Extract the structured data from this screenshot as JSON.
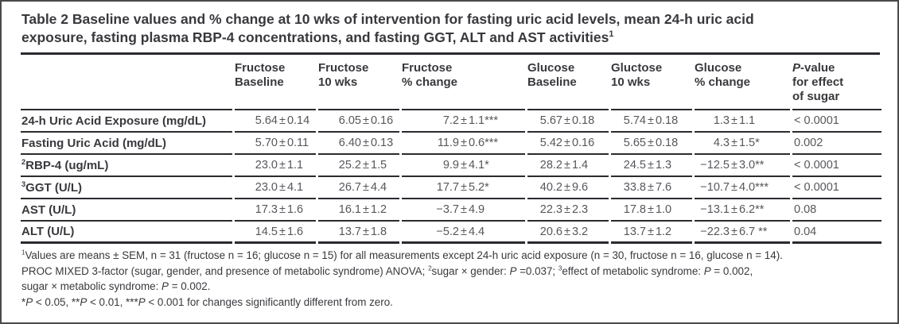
{
  "title": {
    "lines": [
      "Table 2 Baseline values and % change at 10 wks of intervention for fasting uric acid levels, mean 24-h uric acid",
      "exposure, fasting plasma RBP-4 concentrations, and fasting GGT, ALT and AST activities"
    ],
    "superscript": "1"
  },
  "table": {
    "header": {
      "columns": [
        {
          "lines": []
        },
        {
          "lines": [
            [
              {
                "t": "Fructose"
              }
            ],
            [
              {
                "t": "Baseline"
              }
            ]
          ]
        },
        {
          "lines": [
            [
              {
                "t": "Fructose"
              }
            ],
            [
              {
                "t": "10 wks"
              }
            ]
          ]
        },
        {
          "lines": [
            [
              {
                "t": "Fructose"
              }
            ],
            [
              {
                "t": "% change"
              }
            ]
          ]
        },
        {
          "lines": [
            [
              {
                "t": "Glucose"
              }
            ],
            [
              {
                "t": "Baseline"
              }
            ]
          ]
        },
        {
          "lines": [
            [
              {
                "t": "Gluctose"
              }
            ],
            [
              {
                "t": "10 wks"
              }
            ]
          ]
        },
        {
          "lines": [
            [
              {
                "t": "Glucose"
              }
            ],
            [
              {
                "t": "% change"
              }
            ]
          ]
        },
        {
          "lines": [
            [
              {
                "t": "P",
                "i": true
              },
              {
                "t": "-value"
              }
            ],
            [
              {
                "t": "for effect"
              }
            ],
            [
              {
                "t": "of sugar"
              }
            ]
          ]
        }
      ]
    },
    "rows": [
      {
        "label_sup": "",
        "label": "24-h Uric Acid Exposure (mg/dL)",
        "values": [
          "5.64 ± 0.14",
          "6.05 ± 0.16",
          "7.2 ± 1.1***",
          "5.67 ± 0.18",
          "5.74 ± 0.18",
          "1.3 ± 1.1"
        ],
        "p_value": "< 0.0001"
      },
      {
        "label_sup": "",
        "label": "Fasting Uric Acid (mg/dL)",
        "values": [
          "5.70 ± 0.11",
          "6.40 ± 0.13",
          "11.9 ± 0.6***",
          "5.42 ± 0.16",
          "5.65 ± 0.18",
          "4.3 ± 1.5*"
        ],
        "p_value": "0.002"
      },
      {
        "label_sup": "2",
        "label": "RBP-4 (ug/mL)",
        "values": [
          "23.0 ± 1.1",
          "25.2 ± 1.5",
          "9.9 ± 4.1*",
          "28.2 ± 1.4",
          "24.5 ± 1.3",
          "−12.5 ± 3.0**"
        ],
        "p_value": "< 0.0001"
      },
      {
        "label_sup": "3",
        "label": "GGT (U/L)",
        "values": [
          "23.0 ± 4.1",
          "26.7 ± 4.4",
          "17.7 ± 5.2*",
          "40.2 ± 9.6",
          "33.8 ± 7.6",
          "−10.7 ± 4.0***"
        ],
        "p_value": "< 0.0001"
      },
      {
        "label_sup": "",
        "label": "AST (U/L)",
        "values": [
          "17.3 ± 1.6",
          "16.1 ± 1.2",
          "−3.7 ± 4.9",
          "22.3 ± 2.3",
          "17.8 ± 1.0",
          "−13.1 ± 6.2**"
        ],
        "p_value": "0.08"
      },
      {
        "label_sup": "",
        "label": "ALT (U/L)",
        "values": [
          "14.5 ± 1.6",
          "13.7 ± 1.8",
          "−5.2 ± 4.4",
          "20.6 ± 3.2",
          "13.7 ± 1.2",
          "−22.3 ± 6.7 **"
        ],
        "p_value": "0.04"
      }
    ]
  },
  "footnotes": [
    [
      {
        "t": "1",
        "sup": true
      },
      {
        "t": "Values are means ± SEM, n = 31 (fructose n = 16; glucose n = 15) for all measurements except 24-h uric acid exposure (n = 30, fructose n = 16, glucose n = 14)."
      }
    ],
    [
      {
        "t": "PROC MIXED 3-factor (sugar, gender, and presence of metabolic syndrome) ANOVA; "
      },
      {
        "t": "2",
        "sup": true
      },
      {
        "t": "sugar × gender: "
      },
      {
        "t": "P",
        "i": true
      },
      {
        "t": " =0.037; "
      },
      {
        "t": "3",
        "sup": true
      },
      {
        "t": "effect of metabolic syndrome: "
      },
      {
        "t": "P",
        "i": true
      },
      {
        "t": " = 0.002,"
      }
    ],
    [
      {
        "t": "sugar × metabolic syndrome: "
      },
      {
        "t": "P",
        "i": true
      },
      {
        "t": " = 0.002."
      }
    ],
    [
      {
        "t": "*"
      },
      {
        "t": "P",
        "i": true
      },
      {
        "t": " < 0.05, **"
      },
      {
        "t": "P",
        "i": true
      },
      {
        "t": " < 0.01, ***"
      },
      {
        "t": "P",
        "i": true
      },
      {
        "t": " < 0.001 for changes significantly different from zero."
      }
    ]
  ],
  "colors": {
    "rule": "#2b2a2f",
    "text_dark": "#39383d",
    "text_gray": "#56575b",
    "frame_border": "#4a4a4a"
  }
}
